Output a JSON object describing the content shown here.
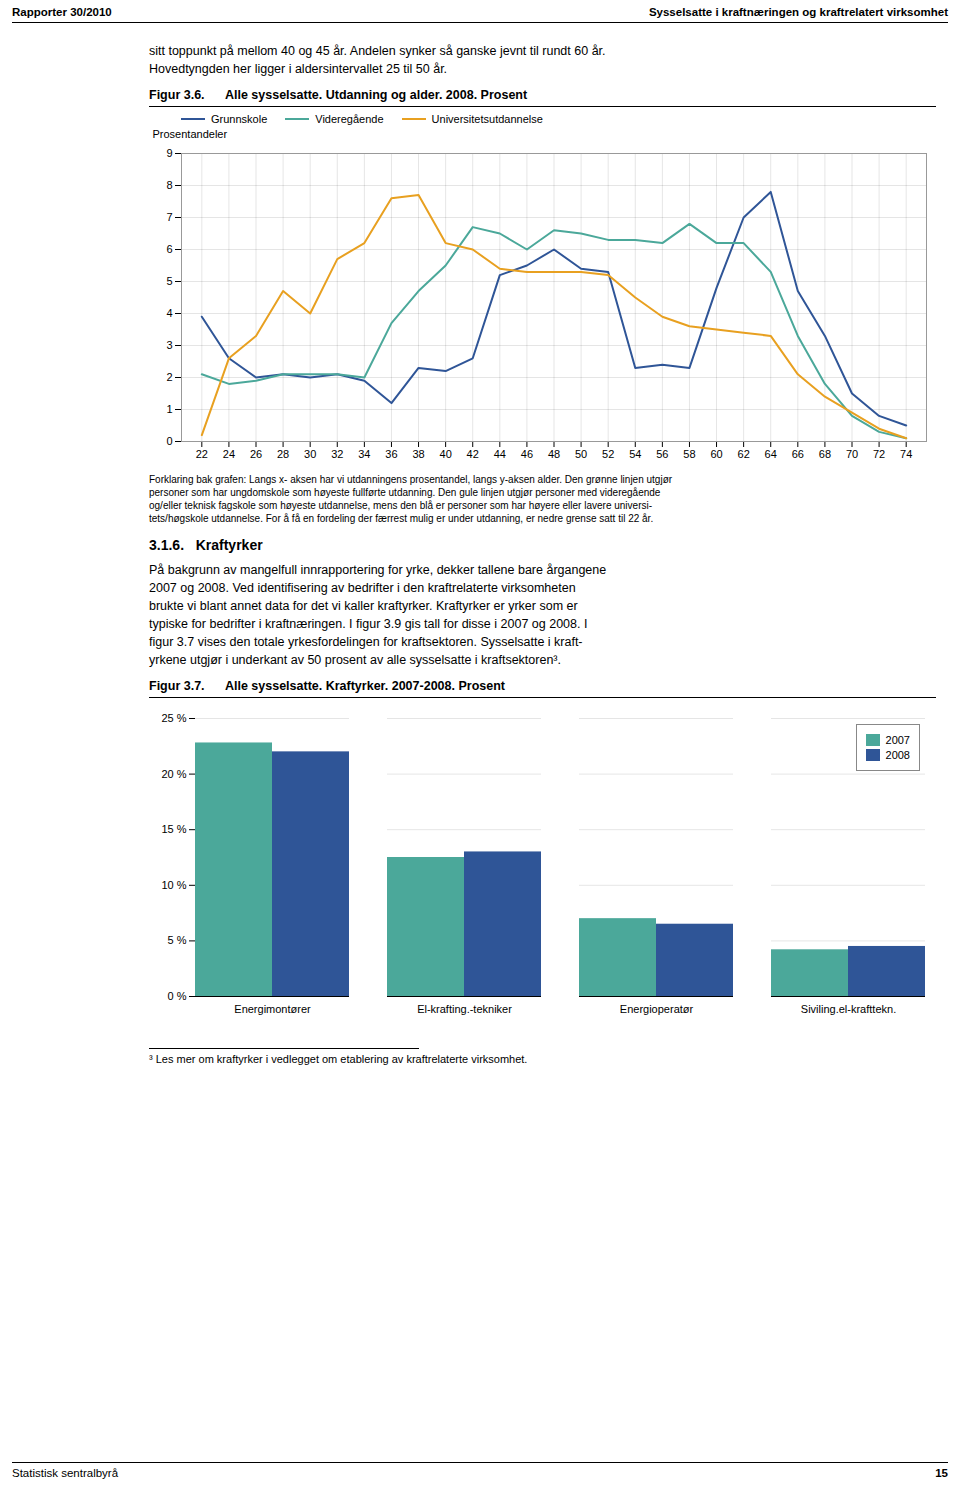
{
  "page": {
    "header_left": "Rapporter 30/2010",
    "header_right": "Sysselsatte i kraftnæringen og kraftrelatert virksomhet",
    "body_1": [
      "sitt toppunkt på mellom 40 og 45 år. Andelen synker så ganske jevnt til rundt 60 år.",
      "Hovedtyngden her ligger i aldersintervallet 25 til 50 år."
    ],
    "section_title": "3.1.6.   Kraftyrker",
    "body_2": [
      "På bakgrunn av mangelfull innrapportering for yrke, dekker tallene bare årgangene",
      "2007 og 2008. Ved identifisering av bedrifter i den kraftrelaterte virksomheten",
      "brukte vi blant annet data for det vi kaller kraftyrker. Kraftyrker er yrker som er",
      "typiske for bedrifter i kraftnæringen.  I figur 3.9 gis tall for disse i 2007 og 2008. I",
      "figur 3.7 vises den totale yrkesfordelingen for kraftsektoren. Sysselsatte i kraft-",
      "yrkene utgjør i underkant av 50 prosent av alle sysselsatte i kraftsektoren³."
    ],
    "footnote": "³ Les mer om kraftyrker i vedlegget om etablering av kraftrelaterte virksomhet.",
    "footer_left": "Statistisk sentralbyrå",
    "footer_right": "15"
  },
  "chart_data": [
    {
      "type": "line",
      "title": "Figur 3.6.      Alle sysselsatte. Utdanning og alder. 2008. Prosent",
      "ylabel": "Prosentandeler",
      "x": [
        22,
        24,
        26,
        28,
        30,
        32,
        34,
        36,
        38,
        40,
        42,
        44,
        46,
        48,
        50,
        52,
        54,
        56,
        58,
        60,
        62,
        64,
        66,
        68,
        70,
        72,
        74
      ],
      "series": [
        {
          "name": "Grunnskole",
          "color": "#2F5597",
          "values": [
            3.9,
            2.6,
            2.0,
            2.1,
            2.0,
            2.1,
            1.9,
            1.2,
            2.3,
            2.2,
            2.6,
            5.2,
            5.5,
            6.0,
            5.4,
            5.3,
            2.3,
            2.4,
            2.3,
            4.8,
            7.0,
            7.8,
            4.7,
            3.3,
            1.5,
            0.8,
            0.5
          ]
        },
        {
          "name": "Videregående",
          "color": "#4BA89A",
          "values": [
            2.1,
            1.8,
            1.9,
            2.1,
            2.1,
            2.1,
            2.0,
            3.7,
            4.7,
            5.5,
            6.7,
            6.5,
            6.0,
            6.6,
            6.5,
            6.3,
            6.3,
            6.2,
            6.8,
            6.2,
            6.2,
            5.3,
            3.3,
            1.8,
            0.8,
            0.3,
            0.1
          ]
        },
        {
          "name": "Universitetsutdannelse",
          "color": "#E8A020",
          "values": [
            0.2,
            2.6,
            3.3,
            4.7,
            4.0,
            5.7,
            6.2,
            7.6,
            7.7,
            6.2,
            6.0,
            5.4,
            5.3,
            5.3,
            5.3,
            5.2,
            4.5,
            3.9,
            3.6,
            3.5,
            3.4,
            3.3,
            2.1,
            1.4,
            0.9,
            0.4,
            0.1
          ]
        }
      ],
      "xlim": [
        20.5,
        75.5
      ],
      "xticks": [
        22,
        24,
        26,
        28,
        30,
        32,
        34,
        36,
        38,
        40,
        42,
        44,
        46,
        48,
        50,
        52,
        54,
        56,
        58,
        60,
        62,
        64,
        66,
        68,
        70,
        72,
        74
      ],
      "ylim": [
        0,
        9
      ],
      "yticks": [
        0,
        1,
        2,
        3,
        4,
        5,
        6,
        7,
        8,
        9
      ],
      "grid": true,
      "legend": "top",
      "caption": [
        "Forklaring bak grafen: Langs x- aksen har vi utdanningens prosentandel, langs y-aksen alder. Den grønne linjen utgjør",
        "personer som har ungdomskole som høyeste fullførte utdanning. Den gule linjen utgjør personer med videregående",
        "og/eller teknisk fagskole som høyeste utdannelse, mens den blå er personer som har høyere eller lavere universi-",
        "tets/høgskole utdannelse. For å få en fordeling der færrest mulig er under utdanning, er nedre grense satt til 22 år."
      ]
    },
    {
      "type": "bar",
      "title": "Figur 3.7.      Alle sysselsatte. Kraftyrker. 2007-2008. Prosent",
      "categories": [
        "Energimontører",
        "El-krafting.-tekniker",
        "Energioperatør",
        "Siviling.el-krafttekn."
      ],
      "series": [
        {
          "name": "2007",
          "color": "#4BA89A",
          "values": [
            22.8,
            12.5,
            7.0,
            4.2
          ]
        },
        {
          "name": "2008",
          "color": "#2F5597",
          "values": [
            22.0,
            13.0,
            6.5,
            4.5
          ]
        }
      ],
      "ylim": [
        0,
        25
      ],
      "yticks": [
        {
          "value": 0,
          "label": "0 %"
        },
        {
          "value": 5,
          "label": "5 %"
        },
        {
          "value": 10,
          "label": "10 %"
        },
        {
          "value": 15,
          "label": "15 %"
        },
        {
          "value": 20,
          "label": "20 %"
        },
        {
          "value": 25,
          "label": "25 %"
        }
      ],
      "grid": true,
      "legend": "upper right"
    }
  ]
}
